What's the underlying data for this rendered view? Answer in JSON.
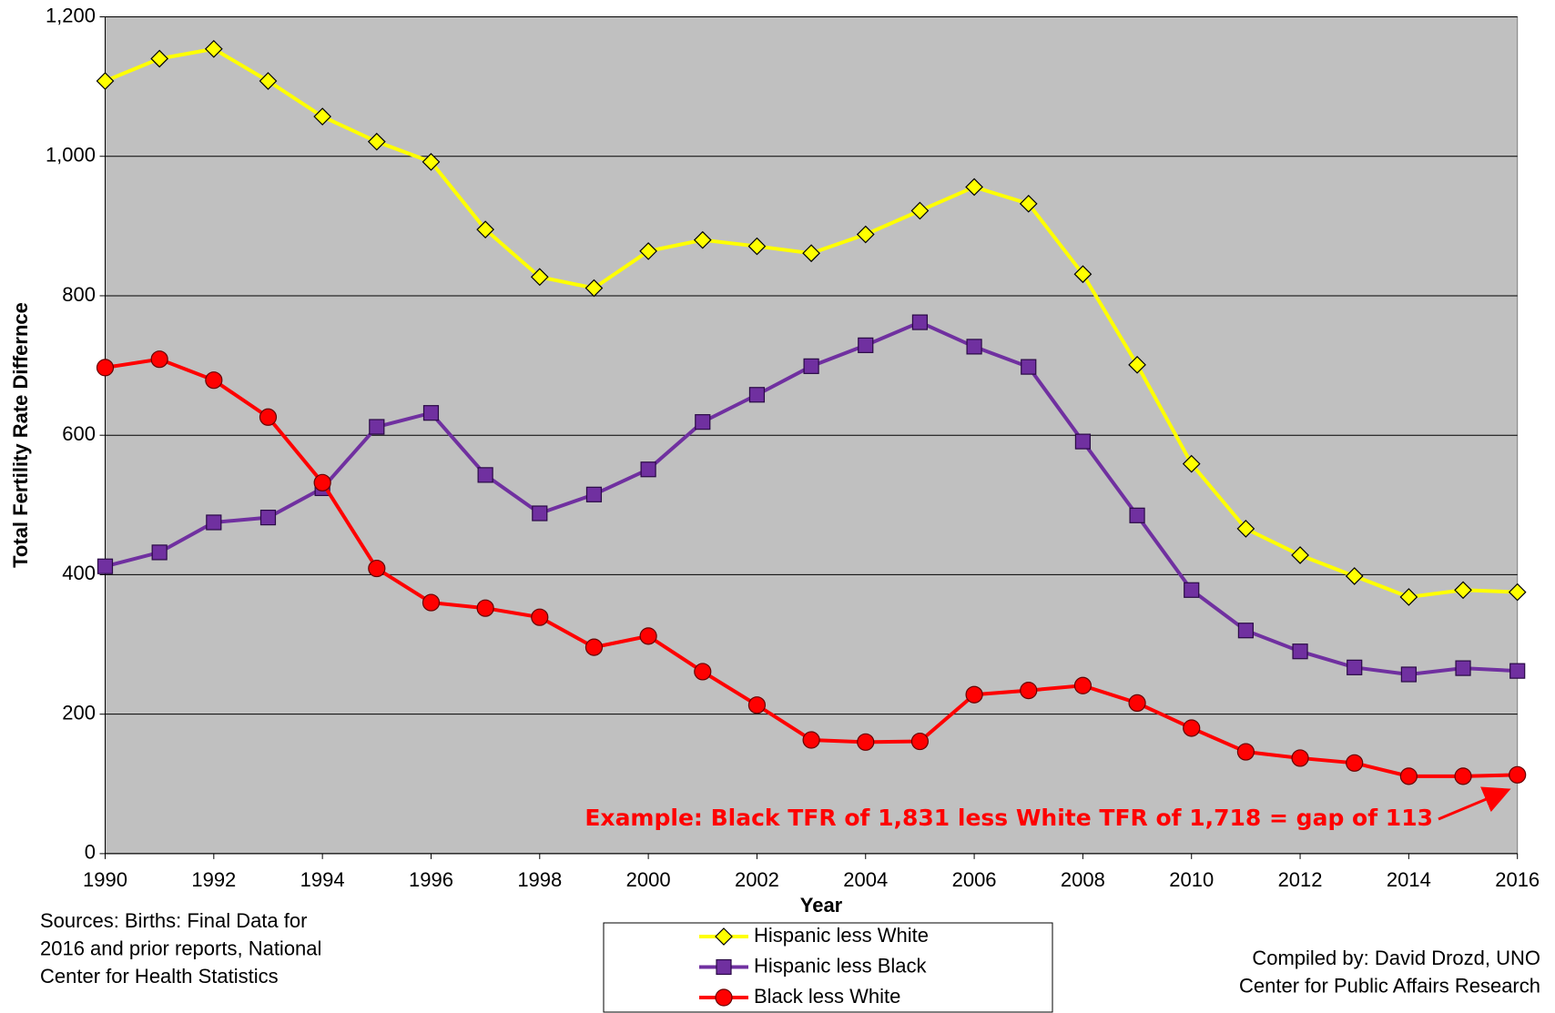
{
  "chart_data": {
    "type": "line",
    "x": [
      1990,
      1991,
      1992,
      1993,
      1994,
      1995,
      1996,
      1997,
      1998,
      1999,
      2000,
      2001,
      2002,
      2003,
      2004,
      2005,
      2006,
      2007,
      2008,
      2009,
      2010,
      2011,
      2012,
      2013,
      2014,
      2015,
      2016
    ],
    "series": [
      {
        "name": "Hispanic less White",
        "color": "#ffff00",
        "marker": "diamond",
        "values": [
          1108,
          1140,
          1154,
          1108,
          1057,
          1021,
          992,
          895,
          827,
          811,
          864,
          880,
          871,
          861,
          888,
          922,
          956,
          932,
          831,
          701,
          559,
          466,
          428,
          398,
          368,
          378,
          375
        ]
      },
      {
        "name": "Hispanic less Black",
        "color": "#7030a0",
        "marker": "square",
        "values": [
          412,
          432,
          475,
          482,
          524,
          612,
          632,
          543,
          488,
          515,
          551,
          619,
          658,
          699,
          729,
          762,
          727,
          698,
          591,
          485,
          378,
          320,
          290,
          267,
          257,
          266,
          262
        ]
      },
      {
        "name": "Black less White",
        "color": "#ff0000",
        "marker": "circle",
        "values": [
          697,
          709,
          679,
          626,
          532,
          409,
          360,
          352,
          339,
          296,
          312,
          261,
          213,
          163,
          160,
          161,
          228,
          234,
          241,
          216,
          180,
          146,
          137,
          130,
          111,
          111,
          113
        ]
      }
    ],
    "xlim": [
      1990,
      2016
    ],
    "xticks": [
      1990,
      1992,
      1994,
      1996,
      1998,
      2000,
      2002,
      2004,
      2006,
      2008,
      2010,
      2012,
      2014,
      2016
    ],
    "ylim": [
      0,
      1200
    ],
    "yticks": [
      0,
      200,
      400,
      600,
      800,
      {
        "value": 1000,
        "label": "1,000"
      },
      {
        "value": 1200,
        "label": "1,200"
      }
    ],
    "grid": true,
    "plot_background": "#c0c0c0",
    "x_label": "Year",
    "y_label": "Total Fertility Rate Differnce",
    "annotation": "Example: Black TFR of 1,831 less White TFR of 1,718 = gap of 113",
    "sources": [
      "Sources: Births: Final Data for",
      "2016 and prior reports, National",
      "Center for Health Statistics"
    ],
    "credit": [
      "Compiled by: David Drozd, UNO",
      "Center for Public Affairs Research"
    ],
    "legend": "bottom"
  }
}
